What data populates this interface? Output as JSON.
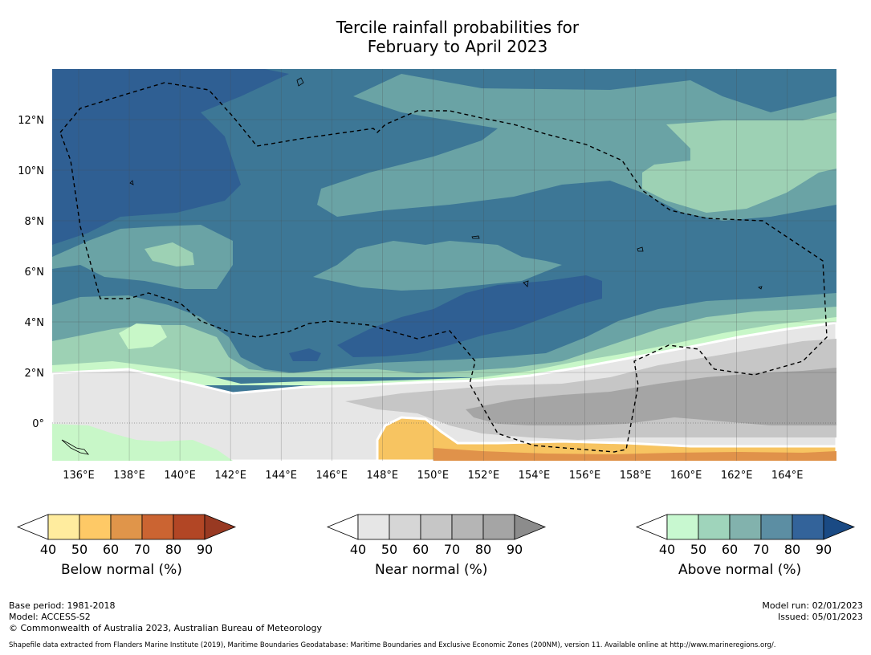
{
  "title": {
    "line1": "Tercile rainfall probabilities for",
    "line2": "February to April 2023"
  },
  "map": {
    "lon_ticks": [
      "136°E",
      "138°E",
      "140°E",
      "142°E",
      "144°E",
      "146°E",
      "148°E",
      "150°E",
      "152°E",
      "154°E",
      "156°E",
      "158°E",
      "160°E",
      "162°E",
      "164°E"
    ],
    "lat_ticks": [
      "12°N",
      "10°N",
      "8°N",
      "6°N",
      "4°N",
      "2°N",
      "0°"
    ],
    "colors": {
      "above_40": "#c8f7c8",
      "above_50": "#9dd1b4",
      "above_60": "#6aa3a5",
      "above_70": "#3d7796",
      "above_80": "#2f5f93",
      "near_40": "#e6e6e6",
      "near_50": "#d6d6d6",
      "near_60": "#c6c6c6",
      "near_70": "#b5b5b5",
      "near_80": "#a5a5a5",
      "below_40": "#fde99a",
      "below_50": "#f7c461",
      "below_60": "#e0924a"
    }
  },
  "colorbars": [
    {
      "id": "below",
      "title": "Below normal (%)",
      "ticks": [
        "40",
        "50",
        "60",
        "70",
        "80",
        "90"
      ],
      "colors": [
        "#ffec9e",
        "#fec966",
        "#e0954a",
        "#cb6432",
        "#b24625",
        "#983922"
      ]
    },
    {
      "id": "near",
      "title": "Near normal (%)",
      "ticks": [
        "40",
        "50",
        "60",
        "70",
        "80",
        "90"
      ],
      "colors": [
        "#e6e6e6",
        "#d6d6d6",
        "#c6c6c6",
        "#b5b5b5",
        "#a5a5a5",
        "#8c8c8c"
      ]
    },
    {
      "id": "above",
      "title": "Above normal (%)",
      "ticks": [
        "40",
        "50",
        "60",
        "70",
        "80",
        "90"
      ],
      "colors": [
        "#c8f8d0",
        "#9fd4bb",
        "#82b2ad",
        "#5c8ea3",
        "#33639a",
        "#1a4a84"
      ]
    }
  ],
  "footer": {
    "base_period": "Base period: 1981-2018",
    "model": "Model: ACCESS-S2",
    "copyright": "© Commonwealth of Australia 2023, Australian Bureau of Meteorology",
    "model_run": "Model run: 02/01/2023",
    "issued": "Issued: 05/01/2023",
    "shapefile": "Shapefile data extracted from Flanders Marine Institute (2019), Maritime Boundaries Geodatabase: Maritime Boundaries and Exclusive Economic Zones (200NM), version 11. Available online at http://www.marineregions.org/."
  }
}
